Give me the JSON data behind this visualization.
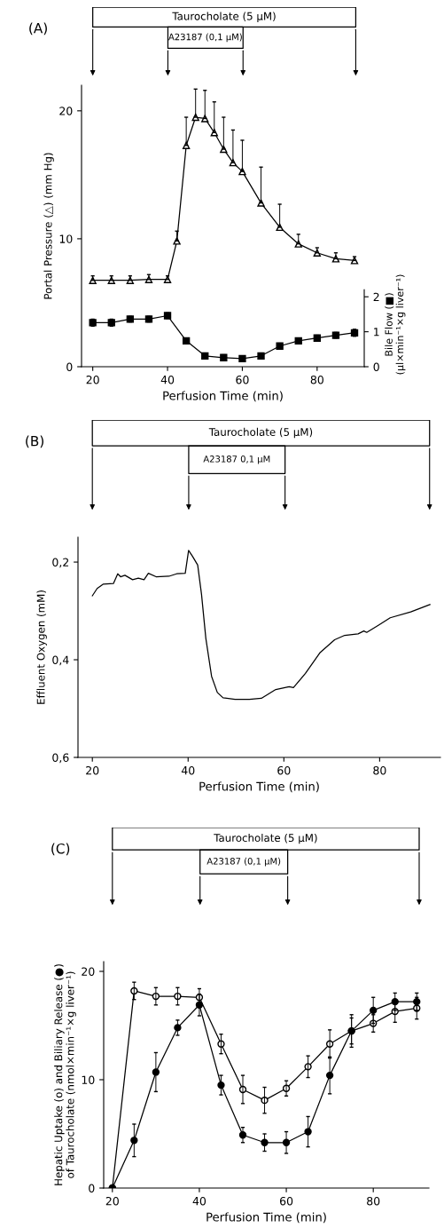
{
  "chart_data": [
    {
      "type": "line",
      "annotations": [
        "(A)",
        "Taurocholate (5 µM)",
        "A23187 (0,1 µM)"
      ],
      "xlabel": "Perfusion Time (min)",
      "ylabel": "Portal Pressure (△) (mm Hg)",
      "y2label": "Bile Flow (■)\n(µl×min⁻¹×g liver⁻¹)",
      "xlim": [
        17,
        92.6
      ],
      "xticks": [
        20,
        40,
        60,
        80
      ],
      "ylim": [
        0,
        22
      ],
      "yticks": [
        0,
        10,
        20
      ],
      "y2lim": [
        0,
        8.05
      ],
      "y2ticks": [
        0,
        1,
        2
      ],
      "series": [
        {
          "color": "#000000",
          "marker": "triangle",
          "x": [
            20,
            25,
            30,
            35,
            40,
            42.5,
            45,
            47.5,
            50,
            52.5,
            55,
            57.5,
            60,
            65,
            70,
            75,
            80,
            85,
            90
          ],
          "values": [
            6.75,
            6.75,
            6.75,
            6.82,
            6.82,
            9.83,
            17.3,
            19.5,
            19.4,
            18.3,
            17.0,
            15.95,
            15.26,
            12.8,
            10.9,
            9.6,
            8.9,
            8.44,
            8.3
          ],
          "errors": [
            [
              6.75,
              7.1
            ],
            [
              6.75,
              7.1
            ],
            [
              6.75,
              7.1
            ],
            [
              6.82,
              7.2
            ],
            [
              6.82,
              7.1
            ],
            [
              9.83,
              10.6
            ],
            [
              17.3,
              19.5
            ],
            [
              19.5,
              21.7
            ],
            [
              19.4,
              21.6
            ],
            [
              18.3,
              20.7
            ],
            [
              17.0,
              19.5
            ],
            [
              15.95,
              18.5
            ],
            [
              15.26,
              17.7
            ],
            [
              12.8,
              15.6
            ],
            [
              10.9,
              12.7
            ],
            [
              9.6,
              10.35
            ],
            [
              8.9,
              9.3
            ],
            [
              8.44,
              8.9
            ],
            [
              8.3,
              8.6
            ]
          ]
        },
        {
          "color": "#000000",
          "marker": "square",
          "axis": "y2",
          "x": [
            20,
            25,
            30,
            35,
            40,
            45,
            50,
            55,
            60,
            65,
            70,
            75,
            80,
            85,
            90
          ],
          "values": [
            1.26,
            1.26,
            1.36,
            1.36,
            1.46,
            0.74,
            0.31,
            0.26,
            0.23,
            0.31,
            0.59,
            0.74,
            0.82,
            0.9,
            0.97
          ],
          "errors": [
            0.1,
            0.1,
            0.08,
            0.08,
            0.08,
            0.08,
            0.08,
            0.08,
            0.08,
            0.08,
            0.08,
            0.08,
            0.08,
            0.08,
            0.1
          ]
        }
      ]
    },
    {
      "type": "line",
      "annotations": [
        "(B)",
        "Taurocholate (5 µM)",
        "A23187 0,1 µM"
      ],
      "xlabel": "Perfusion Time (min)",
      "ylabel": "Effluent Oxygen (mM)",
      "xlim": [
        17,
        92.7
      ],
      "xticks": [
        20,
        40,
        60,
        80
      ],
      "ylim": [
        0.6,
        0.149
      ],
      "yticks": [
        {
          "value": 0.2,
          "label": "0,2"
        },
        {
          "value": 0.4,
          "label": "0,4"
        },
        {
          "value": 0.6,
          "label": "0,6"
        }
      ],
      "series": [
        {
          "color": "#000000",
          "x": [
            20,
            21.0,
            22.3,
            24.4,
            25.3,
            25.9,
            26.8,
            28.4,
            29.6,
            30.8,
            31.7,
            33.3,
            36.0,
            37.6,
            39.4,
            40.1,
            40.9,
            42.0,
            42.8,
            43.7,
            44.9,
            46.1,
            47.3,
            49.8,
            52.8,
            55.3,
            58.3,
            61.1,
            62.0,
            64.5,
            67.5,
            70.6,
            72.7,
            75.5,
            76.7,
            77.3,
            79.8,
            82.2,
            86.5,
            90.5
          ],
          "values": [
            0.269,
            0.254,
            0.245,
            0.244,
            0.224,
            0.23,
            0.227,
            0.236,
            0.233,
            0.236,
            0.223,
            0.23,
            0.229,
            0.224,
            0.223,
            0.176,
            0.188,
            0.206,
            0.266,
            0.356,
            0.434,
            0.467,
            0.478,
            0.481,
            0.481,
            0.479,
            0.461,
            0.455,
            0.457,
            0.428,
            0.386,
            0.359,
            0.35,
            0.347,
            0.341,
            0.344,
            0.329,
            0.314,
            0.302,
            0.287
          ]
        }
      ]
    },
    {
      "type": "line",
      "annotations": [
        "(C)",
        "Taurocholate (5 µM)",
        "A23187 (0,1 µM)"
      ],
      "xlabel": "Perfusion Time (min)",
      "ylabel": "Hepatic Uptake (o) and Biliary Release (●)\nof Taurocholate (nmol×min⁻¹×g liver⁻¹)",
      "xlim": [
        18,
        92.8
      ],
      "xticks": [
        20,
        40,
        60,
        80
      ],
      "ylim": [
        0,
        20.9
      ],
      "yticks": [
        0,
        10,
        20
      ],
      "series": [
        {
          "color": "#000000",
          "marker": "circle",
          "x": [
            20,
            25,
            30,
            35,
            40,
            45,
            50,
            55,
            60,
            65,
            70,
            75,
            80,
            85,
            90
          ],
          "values": [
            0,
            18.2,
            17.7,
            17.7,
            17.6,
            13.3,
            9.1,
            8.1,
            9.2,
            11.2,
            13.3,
            14.5,
            15.2,
            16.3,
            16.6
          ],
          "errors": [
            null,
            0.8,
            0.8,
            0.8,
            0.8,
            0.9,
            1.3,
            1.2,
            0.7,
            1.0,
            1.3,
            1.2,
            0.8,
            1.0,
            1.0
          ]
        },
        {
          "color": "#000000",
          "marker": "circle",
          "x": [
            20,
            25,
            30,
            35,
            40,
            45,
            50,
            55,
            60,
            65,
            70,
            75,
            80,
            85,
            90
          ],
          "values": [
            0,
            4.4,
            10.7,
            14.8,
            16.9,
            9.5,
            4.9,
            4.2,
            4.2,
            5.2,
            10.4,
            14.5,
            16.4,
            17.2,
            17.2
          ],
          "errors": [
            null,
            1.5,
            1.8,
            0.7,
            1.0,
            0.9,
            0.7,
            0.8,
            1.0,
            1.4,
            1.7,
            1.5,
            1.2,
            0.8,
            0.8
          ]
        }
      ]
    }
  ]
}
